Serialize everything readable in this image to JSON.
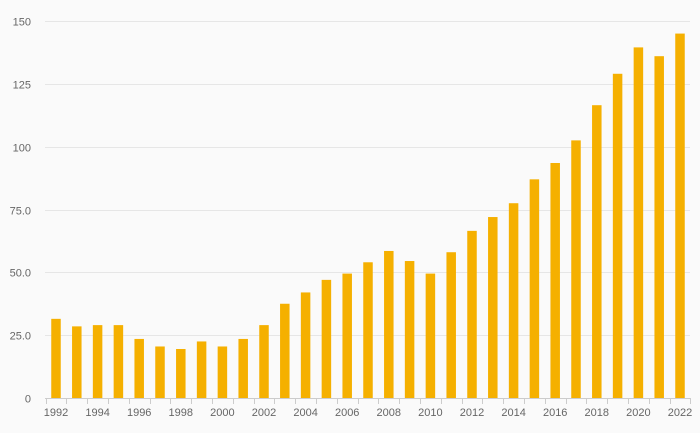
{
  "chart_data": {
    "type": "bar",
    "title": "",
    "xlabel": "",
    "ylabel": "",
    "categories": [
      "1992",
      "1993",
      "1994",
      "1995",
      "1996",
      "1997",
      "1998",
      "1999",
      "2000",
      "2001",
      "2002",
      "2003",
      "2004",
      "2005",
      "2006",
      "2007",
      "2008",
      "2009",
      "2010",
      "2011",
      "2012",
      "2013",
      "2014",
      "2015",
      "2016",
      "2017",
      "2018",
      "2019",
      "2020",
      "2021",
      "2022"
    ],
    "values": [
      31.5,
      28.5,
      29,
      29,
      23.5,
      20.5,
      19.5,
      22.5,
      20.5,
      23.5,
      29,
      37.5,
      42,
      47,
      49.5,
      54,
      58.5,
      54.5,
      49.5,
      58,
      66.5,
      72,
      77.5,
      87,
      93.5,
      102.5,
      116.5,
      129,
      139.5,
      136,
      145
    ],
    "x_tick_labels": [
      "1992",
      "1994",
      "1996",
      "1998",
      "2000",
      "2002",
      "2004",
      "2006",
      "2008",
      "2010",
      "2012",
      "2014",
      "2016",
      "2018",
      "2020",
      "2022"
    ],
    "y_tick_labels": [
      "0",
      "25.0",
      "50.0",
      "75.0",
      "100",
      "125",
      "150"
    ],
    "y_ticks": [
      0,
      25,
      50,
      75,
      100,
      125,
      150
    ],
    "ylim": [
      0,
      150
    ],
    "grid": true,
    "legend": "none",
    "bar_color": "#f5b000"
  }
}
